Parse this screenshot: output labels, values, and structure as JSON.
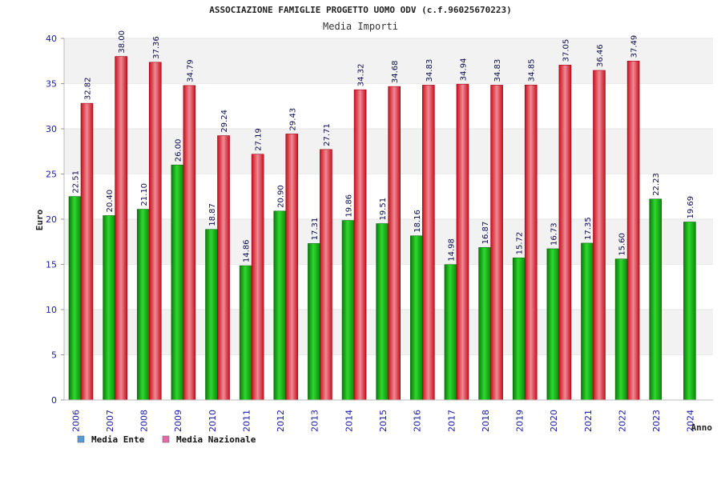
{
  "chart_data": {
    "type": "bar",
    "title": "ASSOCIAZIONE FAMIGLIE PROGETTO UOMO ODV (c.f.96025670223)",
    "subtitle": "Media Importi",
    "xlabel": "Anno",
    "ylabel": "Euro",
    "ylim": [
      0,
      40
    ],
    "yticks": [
      0,
      5,
      10,
      15,
      20,
      25,
      30,
      35,
      40
    ],
    "grid": true,
    "legend_position": "bottom-left",
    "categories": [
      "2006",
      "2007",
      "2008",
      "2009",
      "2010",
      "2011",
      "2012",
      "2013",
      "2014",
      "2015",
      "2016",
      "2017",
      "2018",
      "2019",
      "2020",
      "2021",
      "2022",
      "2023",
      "2024"
    ],
    "series": [
      {
        "name": "Media Ente",
        "color": "#14b414",
        "legend_color": "#5b9bd5",
        "values": [
          22.51,
          20.4,
          21.1,
          26.0,
          18.87,
          14.86,
          20.9,
          17.31,
          19.86,
          19.51,
          18.16,
          14.98,
          16.87,
          15.72,
          16.73,
          17.35,
          15.6,
          22.23,
          19.69
        ]
      },
      {
        "name": "Media Nazionale",
        "color": "#e8283a",
        "legend_color": "#e36ba7",
        "values": [
          32.82,
          38.0,
          37.36,
          34.79,
          29.24,
          27.19,
          29.43,
          27.71,
          34.32,
          34.68,
          34.83,
          34.94,
          34.83,
          34.85,
          37.05,
          36.46,
          37.49,
          null,
          null
        ]
      }
    ]
  }
}
